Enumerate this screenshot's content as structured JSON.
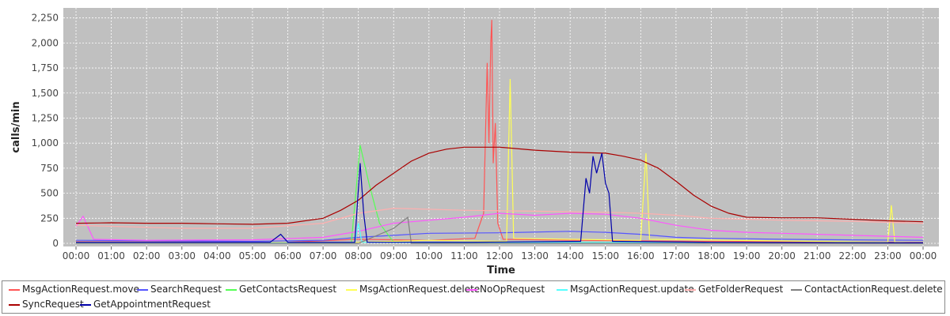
{
  "chart_data": {
    "type": "line",
    "xlabel": "Time",
    "ylabel": "calls/min",
    "x_ticks": [
      "00:00",
      "01:00",
      "02:00",
      "03:00",
      "04:00",
      "05:00",
      "06:00",
      "07:00",
      "08:00",
      "09:00",
      "10:00",
      "11:00",
      "12:00",
      "13:00",
      "14:00",
      "15:00",
      "16:00",
      "17:00",
      "18:00",
      "19:00",
      "20:00",
      "21:00",
      "22:00",
      "23:00",
      "00:00"
    ],
    "y_ticks": [
      "0",
      "250",
      "500",
      "750",
      "1,000",
      "1,250",
      "1,500",
      "1,750",
      "2,000",
      "2,250"
    ],
    "ylim": [
      0,
      2350
    ],
    "xlim_hours": [
      0,
      24
    ],
    "grid": true,
    "legend_position": "bottom",
    "series": [
      {
        "name": "MsgActionRequest.move",
        "color": "#ff5555",
        "points": [
          [
            0,
            15
          ],
          [
            6,
            10
          ],
          [
            8,
            40
          ],
          [
            10,
            30
          ],
          [
            11.3,
            50
          ],
          [
            11.55,
            300
          ],
          [
            11.65,
            1800
          ],
          [
            11.7,
            1000
          ],
          [
            11.75,
            2000
          ],
          [
            11.78,
            2230
          ],
          [
            11.82,
            800
          ],
          [
            11.88,
            1200
          ],
          [
            11.95,
            200
          ],
          [
            12.1,
            40
          ],
          [
            14,
            30
          ],
          [
            18,
            20
          ],
          [
            24,
            10
          ]
        ]
      },
      {
        "name": "SearchRequest",
        "color": "#5555ff",
        "points": [
          [
            0,
            30
          ],
          [
            5,
            20
          ],
          [
            7,
            30
          ],
          [
            8,
            60
          ],
          [
            9,
            80
          ],
          [
            10,
            100
          ],
          [
            12,
            105
          ],
          [
            14,
            120
          ],
          [
            15,
            110
          ],
          [
            16,
            90
          ],
          [
            17,
            60
          ],
          [
            18,
            50
          ],
          [
            20,
            40
          ],
          [
            22,
            35
          ],
          [
            24,
            30
          ]
        ]
      },
      {
        "name": "GetContactsRequest",
        "color": "#55ff55",
        "points": [
          [
            0,
            5
          ],
          [
            7.8,
            5
          ],
          [
            8.05,
            980
          ],
          [
            8.3,
            600
          ],
          [
            8.6,
            200
          ],
          [
            9,
            10
          ],
          [
            24,
            5
          ]
        ]
      },
      {
        "name": "MsgActionRequest.delete",
        "color": "#ffff55",
        "points": [
          [
            0,
            5
          ],
          [
            8,
            10
          ],
          [
            10,
            30
          ],
          [
            12.2,
            20
          ],
          [
            12.3,
            1640
          ],
          [
            12.4,
            50
          ],
          [
            16,
            30
          ],
          [
            16.15,
            900
          ],
          [
            16.25,
            40
          ],
          [
            23,
            10
          ],
          [
            23.1,
            380
          ],
          [
            23.2,
            10
          ],
          [
            24,
            5
          ]
        ]
      },
      {
        "name": "NoOpRequest",
        "color": "#ff55ff",
        "points": [
          [
            0,
            170
          ],
          [
            0.2,
            270
          ],
          [
            0.5,
            40
          ],
          [
            2,
            30
          ],
          [
            5,
            35
          ],
          [
            7,
            60
          ],
          [
            8,
            120
          ],
          [
            9,
            200
          ],
          [
            10,
            230
          ],
          [
            11,
            260
          ],
          [
            12,
            300
          ],
          [
            13,
            280
          ],
          [
            14,
            300
          ],
          [
            15,
            290
          ],
          [
            16,
            250
          ],
          [
            17,
            180
          ],
          [
            18,
            130
          ],
          [
            19,
            110
          ],
          [
            20,
            100
          ],
          [
            22,
            80
          ],
          [
            24,
            60
          ]
        ]
      },
      {
        "name": "MsgActionRequest.update",
        "color": "#55ffff",
        "points": [
          [
            0,
            5
          ],
          [
            7.9,
            5
          ],
          [
            8,
            200
          ],
          [
            8.1,
            10
          ],
          [
            24,
            5
          ]
        ]
      },
      {
        "name": "GetFolderRequest",
        "color": "#ffafaf",
        "points": [
          [
            0,
            180
          ],
          [
            3,
            150
          ],
          [
            5,
            150
          ],
          [
            7,
            200
          ],
          [
            8,
            300
          ],
          [
            9,
            350
          ],
          [
            11,
            330
          ],
          [
            13,
            320
          ],
          [
            15,
            310
          ],
          [
            16,
            300
          ],
          [
            17,
            280
          ],
          [
            18,
            250
          ],
          [
            20,
            230
          ],
          [
            22,
            220
          ],
          [
            24,
            200
          ]
        ]
      },
      {
        "name": "ContactActionRequest.delete",
        "color": "#808080",
        "points": [
          [
            0,
            0
          ],
          [
            8,
            0
          ],
          [
            9,
            150
          ],
          [
            9.4,
            260
          ],
          [
            9.5,
            0
          ],
          [
            24,
            0
          ]
        ]
      },
      {
        "name": "SyncRequest",
        "color": "#aa0000",
        "points": [
          [
            0,
            200
          ],
          [
            1,
            205
          ],
          [
            2,
            200
          ],
          [
            3,
            200
          ],
          [
            4,
            195
          ],
          [
            5,
            190
          ],
          [
            6,
            200
          ],
          [
            7,
            250
          ],
          [
            7.5,
            330
          ],
          [
            8,
            430
          ],
          [
            8.5,
            580
          ],
          [
            9,
            700
          ],
          [
            9.5,
            820
          ],
          [
            10,
            900
          ],
          [
            10.5,
            940
          ],
          [
            11,
            960
          ],
          [
            12,
            960
          ],
          [
            13,
            930
          ],
          [
            14,
            910
          ],
          [
            15,
            900
          ],
          [
            15.5,
            870
          ],
          [
            16,
            830
          ],
          [
            16.5,
            750
          ],
          [
            17,
            620
          ],
          [
            17.5,
            480
          ],
          [
            18,
            370
          ],
          [
            18.5,
            300
          ],
          [
            19,
            260
          ],
          [
            20,
            255
          ],
          [
            21,
            255
          ],
          [
            22,
            240
          ],
          [
            23,
            225
          ],
          [
            24,
            215
          ]
        ]
      },
      {
        "name": "GetAppointmentRequest",
        "color": "#0000aa",
        "points": [
          [
            0,
            10
          ],
          [
            5.5,
            10
          ],
          [
            5.8,
            90
          ],
          [
            6,
            10
          ],
          [
            7.9,
            10
          ],
          [
            8.05,
            800
          ],
          [
            8.15,
            300
          ],
          [
            8.25,
            10
          ],
          [
            11,
            10
          ],
          [
            14.3,
            20
          ],
          [
            14.45,
            650
          ],
          [
            14.55,
            500
          ],
          [
            14.65,
            870
          ],
          [
            14.75,
            700
          ],
          [
            14.9,
            900
          ],
          [
            15,
            600
          ],
          [
            15.1,
            500
          ],
          [
            15.2,
            20
          ],
          [
            18,
            10
          ],
          [
            24,
            5
          ]
        ]
      }
    ]
  }
}
